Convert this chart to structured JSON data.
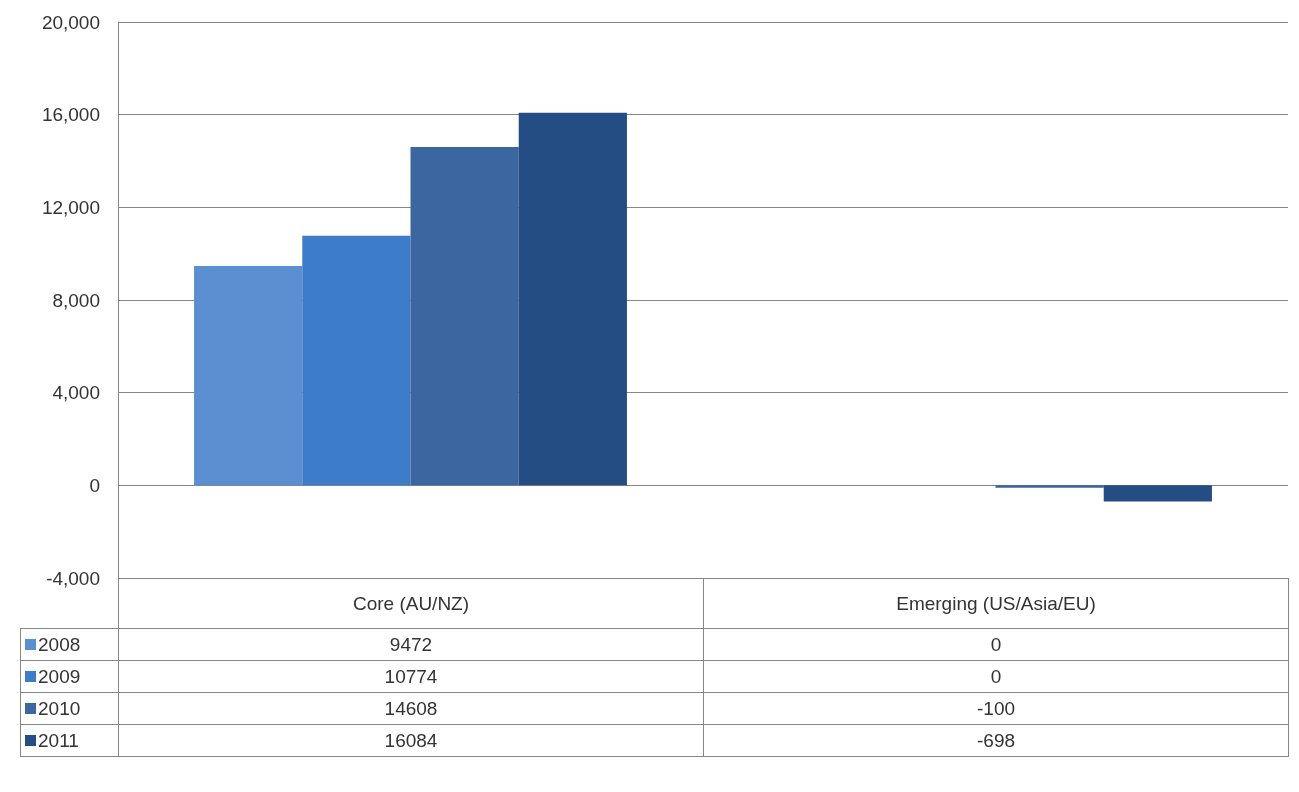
{
  "chart_data": {
    "type": "bar",
    "categories": [
      "Core (AU/NZ)",
      "Emerging (US/Asia/EU)"
    ],
    "series": [
      {
        "name": "2008",
        "color": "#5a8fd2",
        "values": [
          9472,
          0
        ]
      },
      {
        "name": "2009",
        "color": "#3d7cc9",
        "values": [
          10774,
          0
        ]
      },
      {
        "name": "2010",
        "color": "#3b66a0",
        "values": [
          14608,
          -100
        ]
      },
      {
        "name": "2011",
        "color": "#244e83",
        "values": [
          16084,
          -698
        ]
      }
    ],
    "ylim": [
      -4000,
      20000
    ],
    "yticks": [
      {
        "value": -4000,
        "label": "-4,000"
      },
      {
        "value": 0,
        "label": "0"
      },
      {
        "value": 4000,
        "label": "4,000"
      },
      {
        "value": 8000,
        "label": "8,000"
      },
      {
        "value": 12000,
        "label": "12,000"
      },
      {
        "value": 16000,
        "label": "16,000"
      },
      {
        "value": 20000,
        "label": "20,000"
      }
    ],
    "grid": "y",
    "legend": "bottom",
    "data_labels": true
  }
}
